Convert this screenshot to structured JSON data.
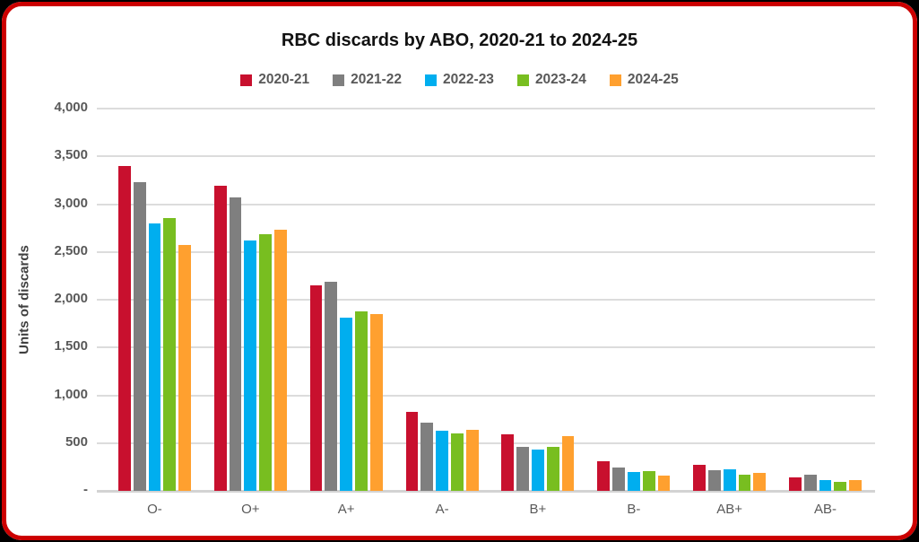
{
  "frame": {
    "border_color": "#CC0000",
    "card_background": "#FFFFFF",
    "outer_background": "#000000",
    "gridline_color": "#DCDCDC",
    "axis_line_color": "#D3D3D3",
    "tick_text_color": "#595959",
    "title_text_color": "#111111"
  },
  "chart_data": {
    "type": "bar",
    "title": "RBC discards by ABO, 2020-21 to 2024-25",
    "xlabel": "",
    "ylabel": "Units of discards",
    "categories": [
      "O-",
      "O+",
      "A+",
      "A-",
      "B+",
      "B-",
      "AB+",
      "AB-"
    ],
    "series": [
      {
        "name": "2020-21",
        "color": "#C8102E",
        "values": [
          3400,
          3195,
          2150,
          830,
          590,
          310,
          270,
          140
        ]
      },
      {
        "name": "2021-22",
        "color": "#7F7F7F",
        "values": [
          3230,
          3070,
          2185,
          710,
          460,
          240,
          215,
          170
        ]
      },
      {
        "name": "2022-23",
        "color": "#00AEEF",
        "values": [
          2800,
          2620,
          1810,
          630,
          430,
          200,
          230,
          110
        ]
      },
      {
        "name": "2023-24",
        "color": "#78BE20",
        "values": [
          2855,
          2690,
          1880,
          605,
          460,
          210,
          170,
          90
        ]
      },
      {
        "name": "2024-25",
        "color": "#FFA02F",
        "values": [
          2570,
          2730,
          1850,
          635,
          570,
          160,
          190,
          115
        ]
      }
    ],
    "ylim": [
      0,
      4000
    ],
    "ytick_step": 500,
    "ytick_labels": [
      "-",
      "500",
      "1,000",
      "1,500",
      "2,000",
      "2,500",
      "3,000",
      "3,500",
      "4,000"
    ],
    "grid": true,
    "legend_position": "top"
  }
}
